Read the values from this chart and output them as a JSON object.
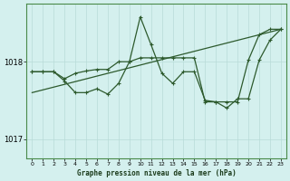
{
  "title": "Graphe pression niveau de la mer (hPa)",
  "background_color": "#d4f0ee",
  "grid_color": "#b8dbd8",
  "line_color": "#2d5a2d",
  "xlim": [
    -0.5,
    23.5
  ],
  "ylim": [
    1016.75,
    1018.75
  ],
  "yticks": [
    1017.0,
    1018.0
  ],
  "xticks": [
    0,
    1,
    2,
    3,
    4,
    5,
    6,
    7,
    8,
    9,
    10,
    11,
    12,
    13,
    14,
    15,
    16,
    17,
    18,
    19,
    20,
    21,
    22,
    23
  ],
  "series1": {
    "points": [
      [
        0,
        1017.87
      ],
      [
        1,
        1017.87
      ],
      [
        2,
        1017.87
      ],
      [
        3,
        1017.75
      ],
      [
        4,
        1017.6
      ],
      [
        5,
        1017.6
      ],
      [
        6,
        1017.65
      ],
      [
        7,
        1017.58
      ],
      [
        8,
        1017.72
      ],
      [
        9,
        1018.0
      ],
      [
        10,
        1018.58
      ],
      [
        11,
        1018.22
      ],
      [
        12,
        1017.85
      ],
      [
        13,
        1017.72
      ],
      [
        14,
        1017.87
      ],
      [
        15,
        1017.87
      ],
      [
        16,
        1017.5
      ],
      [
        17,
        1017.48
      ],
      [
        18,
        1017.4
      ],
      [
        19,
        1017.52
      ],
      [
        20,
        1017.52
      ],
      [
        21,
        1018.02
      ],
      [
        22,
        1018.28
      ],
      [
        23,
        1018.42
      ]
    ]
  },
  "series2": {
    "points": [
      [
        0,
        1017.87
      ],
      [
        1,
        1017.87
      ],
      [
        2,
        1017.87
      ],
      [
        3,
        1017.78
      ],
      [
        4,
        1017.85
      ],
      [
        5,
        1017.88
      ],
      [
        6,
        1017.9
      ],
      [
        7,
        1017.9
      ],
      [
        8,
        1018.0
      ],
      [
        9,
        1018.0
      ],
      [
        10,
        1018.05
      ],
      [
        11,
        1018.05
      ],
      [
        12,
        1018.05
      ],
      [
        13,
        1018.05
      ],
      [
        14,
        1018.05
      ],
      [
        15,
        1018.05
      ],
      [
        16,
        1017.48
      ],
      [
        17,
        1017.48
      ],
      [
        18,
        1017.48
      ],
      [
        19,
        1017.48
      ],
      [
        20,
        1018.02
      ],
      [
        21,
        1018.35
      ],
      [
        22,
        1018.42
      ],
      [
        23,
        1018.42
      ]
    ]
  },
  "series3": {
    "points": [
      [
        0,
        1017.6
      ],
      [
        23,
        1018.42
      ]
    ]
  }
}
